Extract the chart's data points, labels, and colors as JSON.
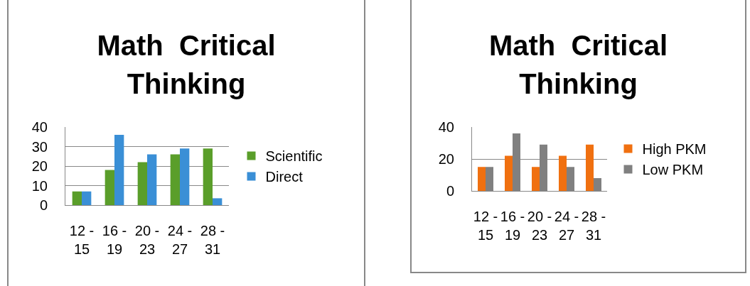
{
  "chart_data": [
    {
      "type": "bar",
      "title": "Math  Critical Thinking",
      "categories": [
        "12 - 15",
        "16 - 19",
        "20 - 23",
        "24 - 27",
        "28 - 31"
      ],
      "series": [
        {
          "name": "Scientific",
          "color": "#5a9e2a",
          "values": [
            7,
            18,
            22,
            26,
            29
          ]
        },
        {
          "name": "Direct",
          "color": "#3a8fd6",
          "values": [
            7,
            36,
            26,
            29,
            3.5
          ]
        }
      ],
      "ylim": [
        0,
        40
      ],
      "yticks": [
        0,
        10,
        20,
        30,
        40
      ],
      "grid": "y",
      "legend": "right"
    },
    {
      "type": "bar",
      "title": "Math  Critical Thinking",
      "categories": [
        "12 - 15",
        "16 - 19",
        "20 - 23",
        "24 - 27",
        "28 - 31"
      ],
      "series": [
        {
          "name": "High PKM",
          "color": "#f07010",
          "values": [
            15,
            22,
            15,
            22,
            29
          ]
        },
        {
          "name": "Low PKM",
          "color": "#808080",
          "values": [
            15,
            36,
            29,
            15,
            8
          ]
        }
      ],
      "ylim": [
        0,
        40
      ],
      "yticks": [
        0,
        20,
        40
      ],
      "grid": "y",
      "legend": "right"
    }
  ]
}
